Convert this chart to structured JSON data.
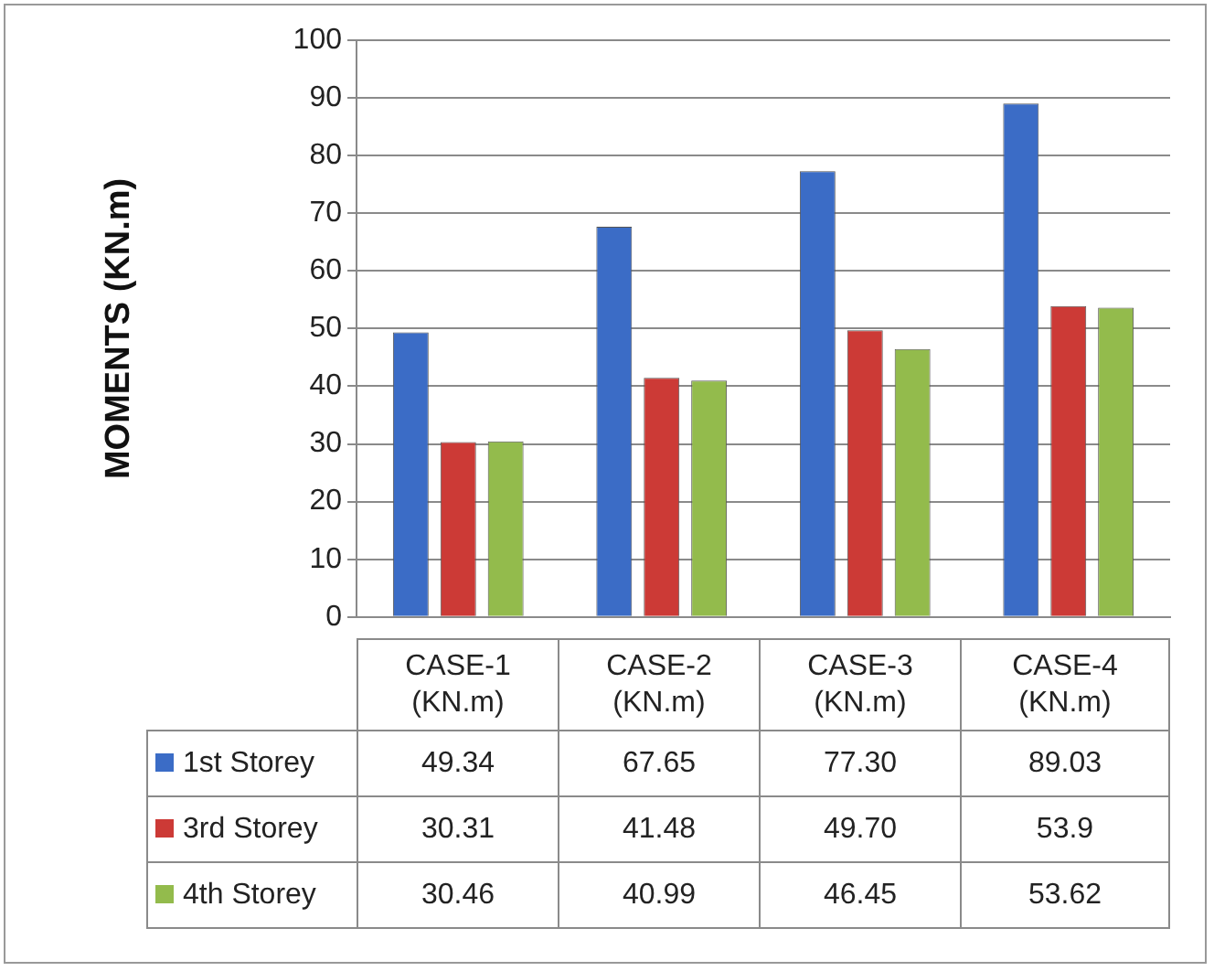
{
  "chart_data": {
    "type": "bar",
    "ylabel": "MOMENTS (KN.m)",
    "categories": [
      "CASE-1 (KN.m)",
      "CASE-2 (KN.m)",
      "CASE-3 (KN.m)",
      "CASE-4 (KN.m)"
    ],
    "series": [
      {
        "name": "1st Storey",
        "color": "#3b6cc6",
        "values": [
          49.34,
          67.65,
          77.3,
          89.03
        ],
        "value_labels": [
          "49.34",
          "67.65",
          "77.30",
          "89.03"
        ]
      },
      {
        "name": "3rd Storey",
        "color": "#cc3a36",
        "values": [
          30.31,
          41.48,
          49.7,
          53.9
        ],
        "value_labels": [
          "30.31",
          "41.48",
          "49.70",
          "53.9"
        ]
      },
      {
        "name": "4th Storey",
        "color": "#93bb4c",
        "values": [
          30.46,
          40.99,
          46.45,
          53.62
        ],
        "value_labels": [
          "30.46",
          "40.99",
          "46.45",
          "53.62"
        ]
      }
    ],
    "ylim": [
      0,
      100
    ],
    "yticks": [
      0,
      10,
      20,
      30,
      40,
      50,
      60,
      70,
      80,
      90,
      100
    ],
    "grid": "y",
    "legend": "bottom"
  }
}
